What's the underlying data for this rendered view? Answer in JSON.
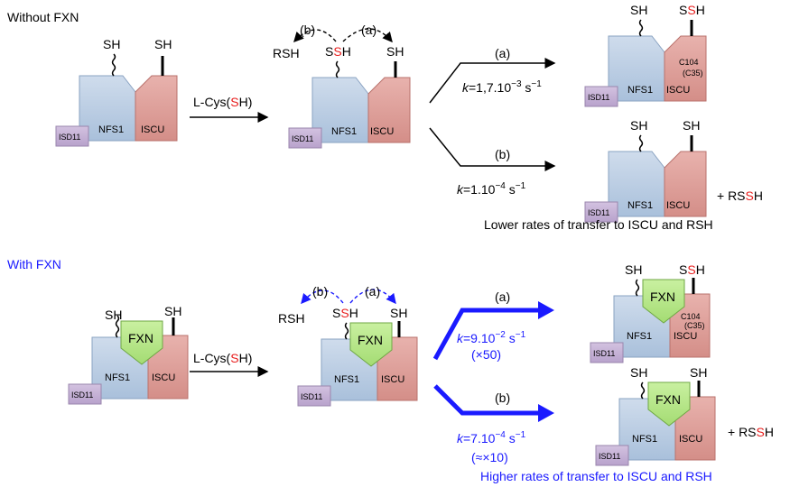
{
  "section_without": {
    "title": "Without FXN",
    "reagent": {
      "prefix": "L-Cys(",
      "s": "S",
      "suffix": "H)"
    },
    "sh": "SH",
    "proteins": {
      "nfs1": "NFS1",
      "iscu": "ISCU",
      "isd11": "ISD11"
    },
    "intermediate": {
      "rsh": "RSH",
      "ssh_s": "S",
      "ssh_red": "S",
      "ssh_h": "H",
      "label_a": "(a)",
      "label_b": "(b)"
    },
    "path_a": {
      "label": "(a)",
      "rate_k": "k",
      "rate_val": "=1,7.10",
      "rate_exp": "−3",
      "rate_unit": " s",
      "rate_unit_exp": "−1",
      "c104": "C104",
      "c35": "(C35)"
    },
    "path_b": {
      "label": "(b)",
      "rate_k": "k",
      "rate_val": "=1.10",
      "rate_exp": "−4",
      "rate_unit": " s",
      "rate_unit_exp": "−1",
      "product_prefix": "+ RS",
      "product_red": "S",
      "product_suffix": "H"
    },
    "summary": "Lower rates of transfer to ISCU and RSH"
  },
  "section_with": {
    "title": "With FXN",
    "reagent": {
      "prefix": "L-Cys(",
      "s": "S",
      "suffix": "H)"
    },
    "sh": "SH",
    "proteins": {
      "nfs1": "NFS1",
      "iscu": "ISCU",
      "isd11": "ISD11",
      "fxn": "FXN"
    },
    "intermediate": {
      "rsh": "RSH",
      "ssh_s": "S",
      "ssh_red": "S",
      "ssh_h": "H",
      "label_a": "(a)",
      "label_b": "(b)"
    },
    "path_a": {
      "label": "(a)",
      "rate_k": "k",
      "rate_val": "=9.10",
      "rate_exp": "−2",
      "rate_unit": " s",
      "rate_unit_exp": "−1",
      "fold": "(×50)",
      "c104": "C104",
      "c35": "(C35)"
    },
    "path_b": {
      "label": "(b)",
      "rate_k": "k",
      "rate_val": "=7.10",
      "rate_exp": "−4",
      "rate_unit": " s",
      "rate_unit_exp": "−1",
      "fold": "(≈×10)",
      "product_prefix": "+ RS",
      "product_red": "S",
      "product_suffix": "H"
    },
    "summary": "Higher rates of transfer to ISCU and RSH"
  },
  "colors": {
    "nfs1": "#b8cde4",
    "iscu": "#df9d98",
    "isd11": "#c5b0d5",
    "fxn": "#b7e78a",
    "red_s": "#e8201f",
    "blue": "#1a1aff",
    "black": "#000000"
  }
}
